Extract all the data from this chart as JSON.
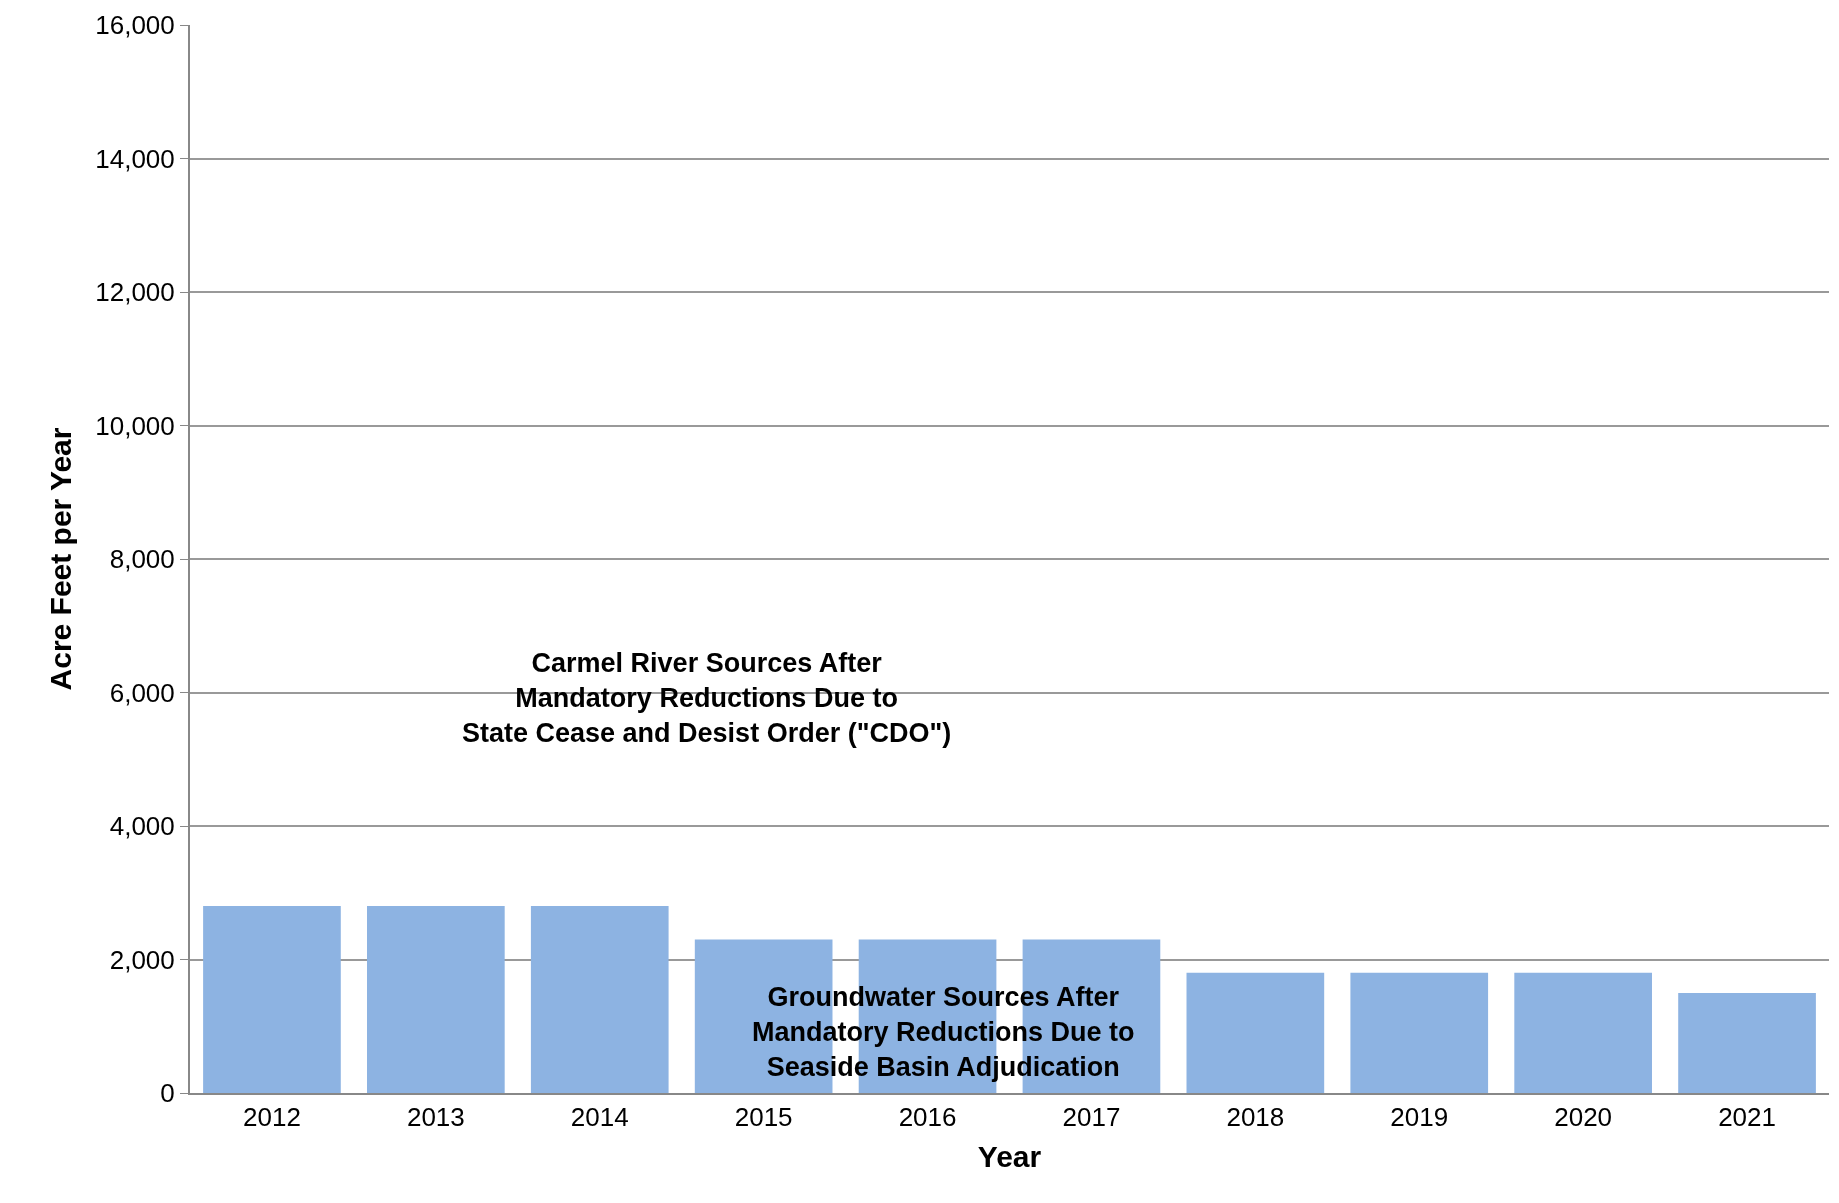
{
  "chart_data": {
    "type": "bar",
    "xlabel": "Year",
    "ylabel": "Acre Feet per Year",
    "categories": [
      "2012",
      "2013",
      "2014",
      "2015",
      "2016",
      "2017",
      "2018",
      "2019",
      "2020",
      "2021"
    ],
    "values": [
      2800,
      2800,
      2800,
      2300,
      2300,
      2300,
      1800,
      1800,
      1800,
      1500
    ],
    "color": "#8db3e2",
    "ylim": [
      0,
      16000
    ],
    "yticks": [
      {
        "value": 0,
        "label": "0"
      },
      {
        "value": 2000,
        "label": "2,000"
      },
      {
        "value": 4000,
        "label": "4,000"
      },
      {
        "value": 6000,
        "label": "6,000"
      },
      {
        "value": 8000,
        "label": "8,000"
      },
      {
        "value": 10000,
        "label": "10,000"
      },
      {
        "value": 12000,
        "label": "12,000"
      },
      {
        "value": 14000,
        "label": "14,000"
      },
      {
        "value": 16000,
        "label": "16,000"
      }
    ],
    "grid": "y",
    "annotations": [
      "Carmel River Sources After\nMandatory Reductions Due to\nState Cease and Desist Order (\"CDO\")",
      "Groundwater Sources After\nMandatory Reductions Due to\nSeaside Basin Adjudication"
    ]
  }
}
